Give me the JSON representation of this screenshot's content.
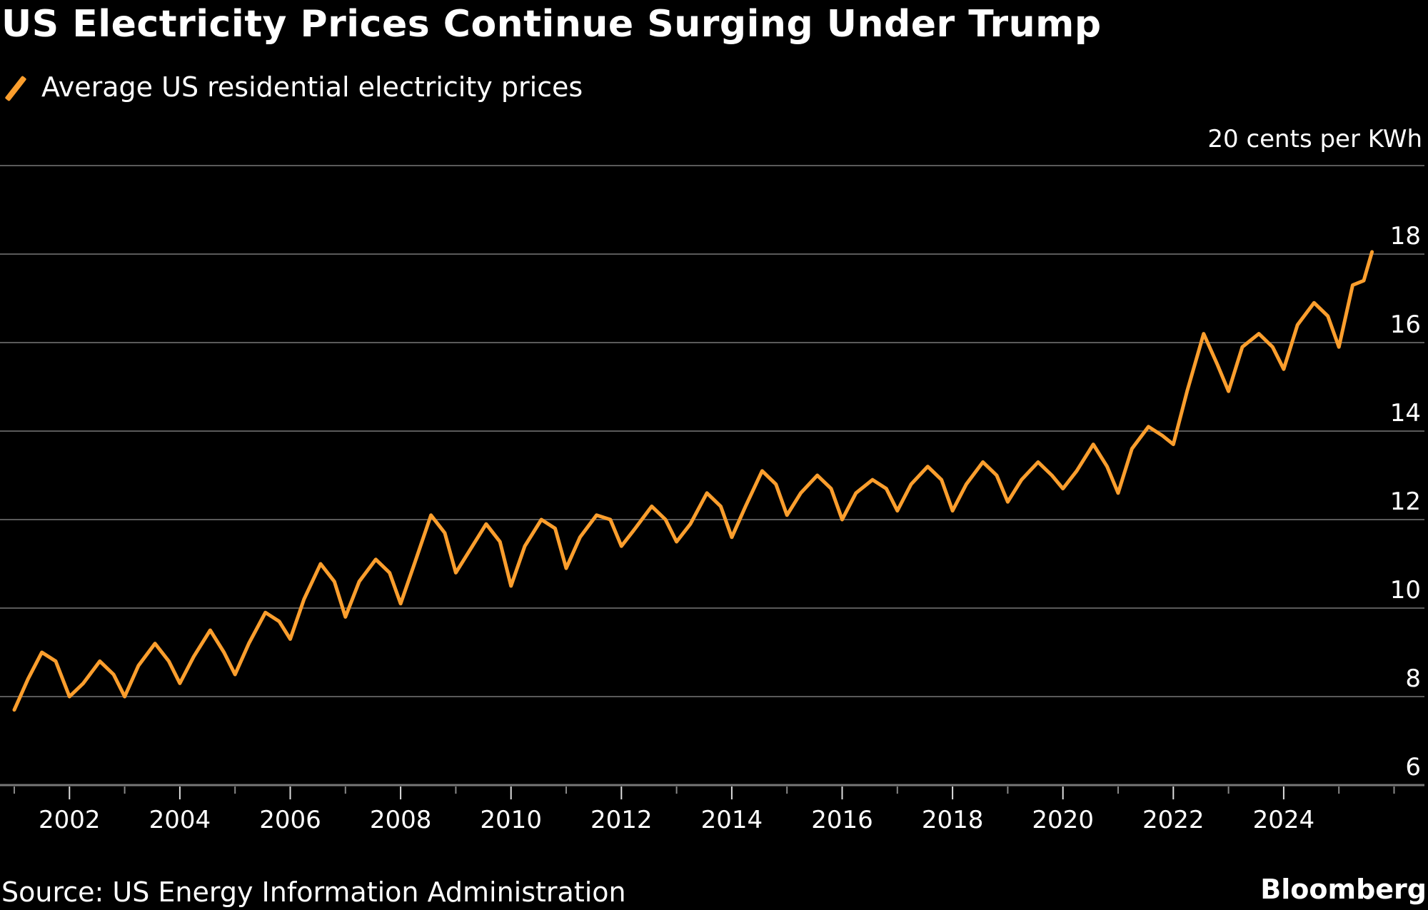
{
  "title": "US Electricity Prices Continue Surging Under Trump",
  "legend": {
    "label": "Average US residential electricity prices",
    "color": "#fb9e2d"
  },
  "source": "Source: US Energy Information Administration",
  "brand": "Bloomberg",
  "chart_data": {
    "type": "line",
    "title": "US Electricity Prices Continue Surging Under Trump",
    "xlabel": "",
    "ylabel": "cents per KWh",
    "unit_label": "20 cents per KWh",
    "ylim": [
      6,
      20
    ],
    "yticks": [
      6,
      8,
      10,
      12,
      14,
      16,
      18,
      20
    ],
    "ytick_labels": [
      "6",
      "8",
      "10",
      "12",
      "14",
      "16",
      "18",
      "20 cents per KWh"
    ],
    "xlim": [
      2001,
      2026
    ],
    "xticks_major": [
      2002,
      2004,
      2006,
      2008,
      2010,
      2012,
      2014,
      2016,
      2018,
      2020,
      2022,
      2024
    ],
    "xtick_labels": [
      "2002",
      "2004",
      "2006",
      "2008",
      "2010",
      "2012",
      "2014",
      "2016",
      "2018",
      "2020",
      "2022",
      "2024"
    ],
    "grid": true,
    "legend_position": "top-left",
    "series": [
      {
        "name": "Average US residential electricity prices",
        "color": "#fb9e2d",
        "x": [
          2001.0,
          2001.25,
          2001.5,
          2001.75,
          2002.0,
          2002.25,
          2002.55,
          2002.8,
          2003.0,
          2003.25,
          2003.55,
          2003.8,
          2004.0,
          2004.25,
          2004.55,
          2004.8,
          2005.0,
          2005.25,
          2005.55,
          2005.8,
          2006.0,
          2006.25,
          2006.55,
          2006.8,
          2007.0,
          2007.25,
          2007.55,
          2007.8,
          2008.0,
          2008.25,
          2008.55,
          2008.8,
          2009.0,
          2009.25,
          2009.55,
          2009.8,
          2010.0,
          2010.25,
          2010.55,
          2010.8,
          2011.0,
          2011.25,
          2011.55,
          2011.8,
          2012.0,
          2012.25,
          2012.55,
          2012.8,
          2013.0,
          2013.25,
          2013.55,
          2013.8,
          2014.0,
          2014.25,
          2014.55,
          2014.8,
          2015.0,
          2015.25,
          2015.55,
          2015.8,
          2016.0,
          2016.25,
          2016.55,
          2016.8,
          2017.0,
          2017.25,
          2017.55,
          2017.8,
          2018.0,
          2018.25,
          2018.55,
          2018.8,
          2019.0,
          2019.25,
          2019.55,
          2019.8,
          2020.0,
          2020.25,
          2020.55,
          2020.8,
          2021.0,
          2021.25,
          2021.55,
          2021.8,
          2022.0,
          2022.25,
          2022.55,
          2022.8,
          2023.0,
          2023.25,
          2023.55,
          2023.8,
          2024.0,
          2024.25,
          2024.55,
          2024.8,
          2025.0,
          2025.25,
          2025.45,
          2025.6
        ],
        "values": [
          7.7,
          8.4,
          9.0,
          8.8,
          8.0,
          8.3,
          8.8,
          8.5,
          8.0,
          8.7,
          9.2,
          8.8,
          8.3,
          8.9,
          9.5,
          9.0,
          8.5,
          9.2,
          9.9,
          9.7,
          9.3,
          10.2,
          11.0,
          10.6,
          9.8,
          10.6,
          11.1,
          10.8,
          10.1,
          11.0,
          12.1,
          11.7,
          10.8,
          11.3,
          11.9,
          11.5,
          10.5,
          11.4,
          12.0,
          11.8,
          10.9,
          11.6,
          12.1,
          12.0,
          11.4,
          11.8,
          12.3,
          12.0,
          11.5,
          11.9,
          12.6,
          12.3,
          11.6,
          12.3,
          13.1,
          12.8,
          12.1,
          12.6,
          13.0,
          12.7,
          12.0,
          12.6,
          12.9,
          12.7,
          12.2,
          12.8,
          13.2,
          12.9,
          12.2,
          12.8,
          13.3,
          13.0,
          12.4,
          12.9,
          13.3,
          13.0,
          12.7,
          13.1,
          13.7,
          13.2,
          12.6,
          13.6,
          14.1,
          13.9,
          13.7,
          14.9,
          16.2,
          15.5,
          14.9,
          15.9,
          16.2,
          15.9,
          15.4,
          16.4,
          16.9,
          16.6,
          15.9,
          17.3,
          17.4,
          18.05
        ]
      }
    ]
  }
}
